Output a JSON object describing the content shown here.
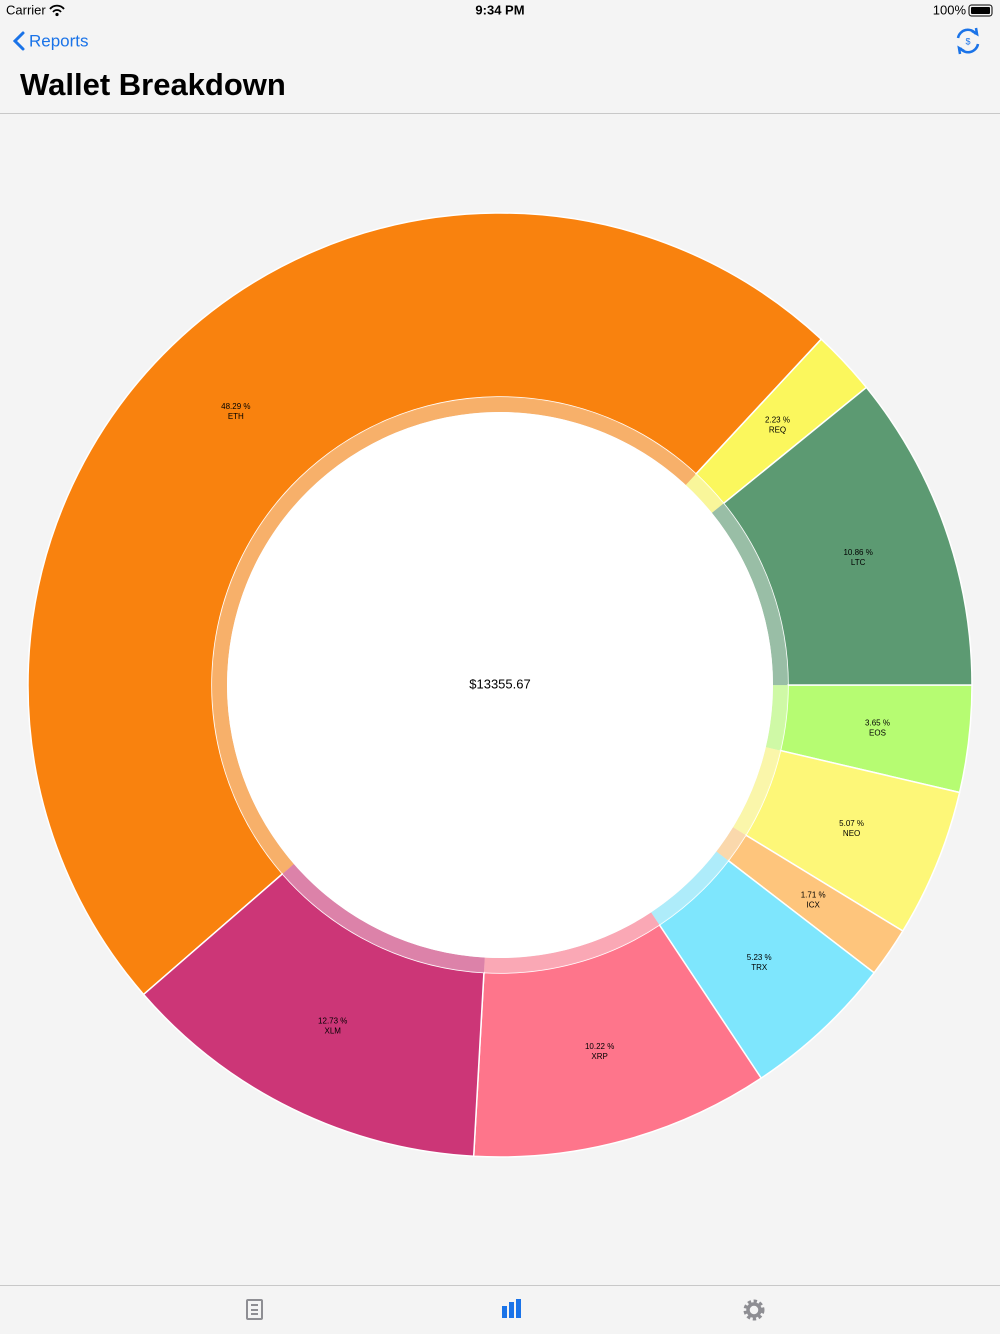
{
  "status_bar": {
    "carrier": "Carrier",
    "time": "9:34 PM",
    "battery": "100%"
  },
  "nav": {
    "back": "Reports",
    "title": "Wallet Breakdown"
  },
  "chart_data": {
    "type": "donut",
    "categories": [
      "ETH",
      "REQ",
      "LTC",
      "EOS",
      "NEO",
      "ICX",
      "TRX",
      "XRP",
      "XLM"
    ],
    "values": [
      48.29,
      2.23,
      10.86,
      3.65,
      5.07,
      1.71,
      5.23,
      10.22,
      12.73
    ],
    "value_labels": [
      "48.29 %",
      "2.23 %",
      "10.86 %",
      "3.65 %",
      "5.07 %",
      "1.71 %",
      "5.23 %",
      "10.22 %",
      "12.73 %"
    ],
    "colors": [
      "#f9820e",
      "#fbf75d",
      "#5c9a72",
      "#b6fc72",
      "#fdf778",
      "#fec57c",
      "#7ee6fd",
      "#fe758b",
      "#cc3677"
    ],
    "center_label": "$13355.67"
  }
}
